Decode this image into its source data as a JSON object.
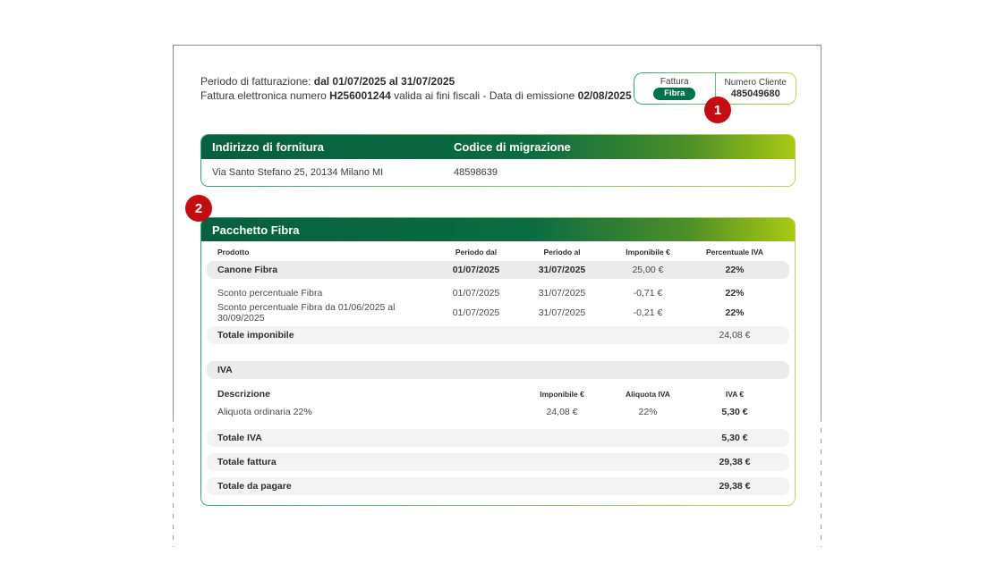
{
  "colors": {
    "green_dark": "#07603F",
    "green_lime": "#A9C913",
    "pill_green": "#00714A",
    "callout_red": "#C40D12",
    "border_teal": "#3E9B82",
    "border_lime": "#BCD45A"
  },
  "header": {
    "line1_prefix": "Periodo di fatturazione: ",
    "line1_bold": "dal 01/07/2025 al 31/07/2025",
    "line2_prefix": "Fattura elettronica numero ",
    "line2_bold1": "H256001244",
    "line2_mid": " valida ai fini fiscali - Data di emissione ",
    "line2_bold2": "02/08/2025"
  },
  "info_box": {
    "left_label": "Fattura",
    "badge": "Fibra",
    "right_label": "Numero Cliente",
    "right_value": "485049680"
  },
  "callouts": {
    "one": "1",
    "two": "2"
  },
  "supply": {
    "columns": [
      "Indirizzo di fornitura",
      "Codice di migrazione"
    ],
    "values": [
      "Via Santo Stefano 25, 20134 Milano MI",
      "48598639"
    ]
  },
  "package": {
    "title": "Pacchetto Fibra",
    "columns": [
      "Prodotto",
      "Periodo dal",
      "Periodo al",
      "Imponibile €",
      "Percentuale IVA"
    ],
    "rows": [
      {
        "product": "Canone Fibra",
        "from": "01/07/2025",
        "to": "31/07/2025",
        "amount": "25,00 €",
        "vat": "22%"
      },
      {
        "product": "Sconto percentuale Fibra",
        "from": "01/07/2025",
        "to": "31/07/2025",
        "amount": "-0,71 €",
        "vat": "22%"
      },
      {
        "product": "Sconto percentuale Fibra da 01/06/2025 al 30/09/2025",
        "from": "01/07/2025",
        "to": "31/07/2025",
        "amount": "-0,21 €",
        "vat": "22%"
      }
    ],
    "totale_imponibile": {
      "label": "Totale imponibile",
      "value": "24,08 €"
    },
    "iva": {
      "title": "IVA",
      "columns": [
        "Descrizione",
        "Imponibile €",
        "Aliquota IVA",
        "IVA €"
      ],
      "row": {
        "desc": "Aliquota ordinaria 22%",
        "imponibile": "24,08 €",
        "aliquota": "22%",
        "iva": "5,30 €"
      }
    },
    "totals": [
      {
        "label": "Totale IVA",
        "value": "5,30 €"
      },
      {
        "label": "Totale fattura",
        "value": "29,38 €"
      },
      {
        "label": "Totale da pagare",
        "value": "29,38 €"
      }
    ]
  }
}
